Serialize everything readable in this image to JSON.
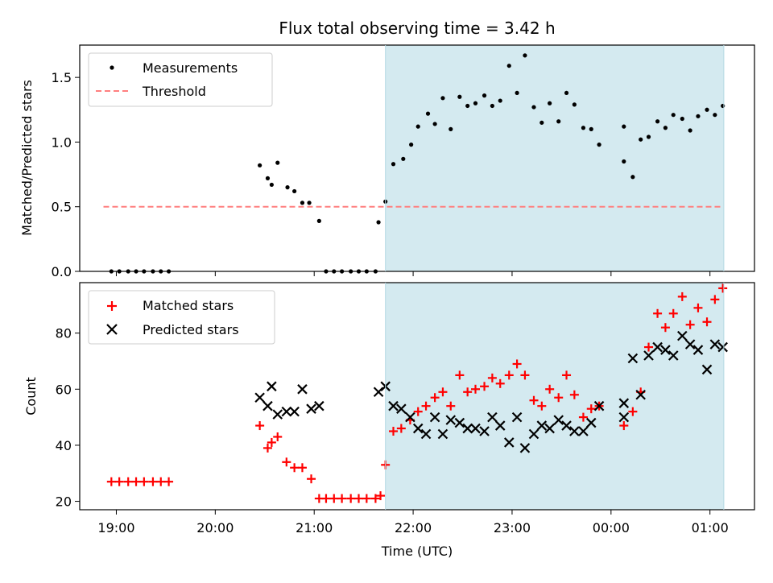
{
  "chart_data": {
    "type": "scatter",
    "title": "Flux total observing time = 3.42 h",
    "xlabel": "Time (UTC)",
    "x_tick_labels": [
      "19:00",
      "20:00",
      "21:00",
      "22:00",
      "23:00",
      "00:00",
      "01:00"
    ],
    "x_tick_hours": [
      19,
      20,
      21,
      22,
      23,
      24,
      25
    ],
    "xlim_hours": [
      18.63,
      25.45
    ],
    "shaded_region_hours": [
      21.72,
      25.14
    ],
    "shade_color": "#d4eaf0",
    "panels": [
      {
        "ylabel": "Matched/Predicted stars",
        "ylim": [
          0,
          1.75
        ],
        "y_ticks": [
          0.0,
          0.5,
          1.0,
          1.5
        ],
        "y_tick_labels": [
          "0.0",
          "0.5",
          "1.0",
          "1.5"
        ],
        "legend": [
          "Measurements",
          "Threshold"
        ],
        "threshold": {
          "name": "Threshold",
          "value": 0.5,
          "x_range_hours": [
            18.87,
            25.12
          ],
          "color": "#ff7f7f",
          "style": "dashed"
        },
        "series": [
          {
            "name": "Measurements",
            "marker": "dot",
            "color": "#000000",
            "points": [
              [
                18.95,
                0
              ],
              [
                19.03,
                0
              ],
              [
                19.12,
                0
              ],
              [
                19.2,
                0
              ],
              [
                19.28,
                0
              ],
              [
                19.37,
                0
              ],
              [
                19.45,
                0
              ],
              [
                19.53,
                0
              ],
              [
                20.45,
                0.82
              ],
              [
                20.53,
                0.72
              ],
              [
                20.57,
                0.67
              ],
              [
                20.63,
                0.84
              ],
              [
                20.73,
                0.65
              ],
              [
                20.8,
                0.62
              ],
              [
                20.88,
                0.53
              ],
              [
                20.95,
                0.53
              ],
              [
                21.05,
                0.39
              ],
              [
                21.12,
                0
              ],
              [
                21.2,
                0
              ],
              [
                21.28,
                0
              ],
              [
                21.37,
                0
              ],
              [
                21.45,
                0
              ],
              [
                21.53,
                0
              ],
              [
                21.62,
                0
              ],
              [
                21.65,
                0.38
              ],
              [
                21.72,
                0.54
              ],
              [
                21.8,
                0.83
              ],
              [
                21.9,
                0.87
              ],
              [
                21.98,
                0.98
              ],
              [
                22.05,
                1.12
              ],
              [
                22.15,
                1.22
              ],
              [
                22.22,
                1.14
              ],
              [
                22.3,
                1.34
              ],
              [
                22.38,
                1.1
              ],
              [
                22.47,
                1.35
              ],
              [
                22.55,
                1.28
              ],
              [
                22.63,
                1.3
              ],
              [
                22.72,
                1.36
              ],
              [
                22.8,
                1.28
              ],
              [
                22.88,
                1.32
              ],
              [
                22.97,
                1.59
              ],
              [
                23.05,
                1.38
              ],
              [
                23.13,
                1.67
              ],
              [
                23.22,
                1.27
              ],
              [
                23.3,
                1.15
              ],
              [
                23.38,
                1.3
              ],
              [
                23.47,
                1.16
              ],
              [
                23.55,
                1.38
              ],
              [
                23.63,
                1.29
              ],
              [
                23.72,
                1.11
              ],
              [
                23.8,
                1.1
              ],
              [
                23.88,
                0.98
              ],
              [
                24.13,
                1.12
              ],
              [
                24.13,
                0.85
              ],
              [
                24.22,
                0.73
              ],
              [
                24.3,
                1.02
              ],
              [
                24.38,
                1.04
              ],
              [
                24.47,
                1.16
              ],
              [
                24.55,
                1.11
              ],
              [
                24.63,
                1.21
              ],
              [
                24.72,
                1.18
              ],
              [
                24.8,
                1.09
              ],
              [
                24.88,
                1.2
              ],
              [
                24.97,
                1.25
              ],
              [
                25.05,
                1.21
              ],
              [
                25.13,
                1.28
              ]
            ]
          }
        ]
      },
      {
        "ylabel": "Count",
        "ylim": [
          17,
          98
        ],
        "y_ticks": [
          20,
          40,
          60,
          80
        ],
        "y_tick_labels": [
          "20",
          "40",
          "60",
          "80"
        ],
        "legend": [
          "Matched stars",
          "Predicted stars"
        ],
        "series": [
          {
            "name": "Matched stars",
            "marker": "plus",
            "color": "#ff0000",
            "points": [
              [
                18.95,
                27
              ],
              [
                19.03,
                27
              ],
              [
                19.12,
                27
              ],
              [
                19.2,
                27
              ],
              [
                19.28,
                27
              ],
              [
                19.37,
                27
              ],
              [
                19.45,
                27
              ],
              [
                19.53,
                27
              ],
              [
                20.45,
                47
              ],
              [
                20.53,
                39
              ],
              [
                20.57,
                41
              ],
              [
                20.63,
                43
              ],
              [
                20.72,
                34
              ],
              [
                20.8,
                32
              ],
              [
                20.88,
                32
              ],
              [
                20.97,
                28
              ],
              [
                21.05,
                21
              ],
              [
                21.12,
                21
              ],
              [
                21.2,
                21
              ],
              [
                21.28,
                21
              ],
              [
                21.37,
                21
              ],
              [
                21.45,
                21
              ],
              [
                21.53,
                21
              ],
              [
                21.62,
                21
              ],
              [
                21.67,
                22
              ],
              [
                21.72,
                33
              ],
              [
                21.8,
                45
              ],
              [
                21.88,
                46
              ],
              [
                21.97,
                49
              ],
              [
                22.05,
                52
              ],
              [
                22.13,
                54
              ],
              [
                22.22,
                57
              ],
              [
                22.3,
                59
              ],
              [
                22.38,
                54
              ],
              [
                22.47,
                65
              ],
              [
                22.55,
                59
              ],
              [
                22.63,
                60
              ],
              [
                22.72,
                61
              ],
              [
                22.8,
                64
              ],
              [
                22.88,
                62
              ],
              [
                22.97,
                65
              ],
              [
                23.05,
                69
              ],
              [
                23.13,
                65
              ],
              [
                23.22,
                56
              ],
              [
                23.3,
                54
              ],
              [
                23.38,
                60
              ],
              [
                23.47,
                57
              ],
              [
                23.55,
                65
              ],
              [
                23.63,
                58
              ],
              [
                23.72,
                50
              ],
              [
                23.8,
                53
              ],
              [
                23.88,
                54
              ],
              [
                24.13,
                47
              ],
              [
                24.22,
                52
              ],
              [
                24.3,
                59
              ],
              [
                24.38,
                75
              ],
              [
                24.47,
                87
              ],
              [
                24.55,
                82
              ],
              [
                24.63,
                87
              ],
              [
                24.72,
                93
              ],
              [
                24.8,
                83
              ],
              [
                24.88,
                89
              ],
              [
                24.97,
                84
              ],
              [
                25.05,
                92
              ],
              [
                25.13,
                96
              ]
            ]
          },
          {
            "name": "Predicted stars",
            "marker": "x",
            "color": "#000000",
            "points": [
              [
                20.45,
                57
              ],
              [
                20.53,
                54
              ],
              [
                20.57,
                61
              ],
              [
                20.63,
                51
              ],
              [
                20.72,
                52
              ],
              [
                20.8,
                52
              ],
              [
                20.88,
                60
              ],
              [
                20.97,
                53
              ],
              [
                21.05,
                54
              ],
              [
                21.65,
                59
              ],
              [
                21.72,
                61
              ],
              [
                21.8,
                54
              ],
              [
                21.88,
                53
              ],
              [
                21.97,
                50
              ],
              [
                22.05,
                46
              ],
              [
                22.13,
                44
              ],
              [
                22.22,
                50
              ],
              [
                22.3,
                44
              ],
              [
                22.38,
                49
              ],
              [
                22.47,
                48
              ],
              [
                22.55,
                46
              ],
              [
                22.63,
                46
              ],
              [
                22.72,
                45
              ],
              [
                22.8,
                50
              ],
              [
                22.88,
                47
              ],
              [
                22.97,
                41
              ],
              [
                23.05,
                50
              ],
              [
                23.13,
                39
              ],
              [
                23.22,
                44
              ],
              [
                23.3,
                47
              ],
              [
                23.38,
                46
              ],
              [
                23.47,
                49
              ],
              [
                23.55,
                47
              ],
              [
                23.63,
                45
              ],
              [
                23.72,
                45
              ],
              [
                23.8,
                48
              ],
              [
                23.88,
                54
              ],
              [
                24.13,
                50
              ],
              [
                24.13,
                55
              ],
              [
                24.22,
                71
              ],
              [
                24.3,
                58
              ],
              [
                24.38,
                72
              ],
              [
                24.47,
                75
              ],
              [
                24.55,
                74
              ],
              [
                24.63,
                72
              ],
              [
                24.72,
                79
              ],
              [
                24.8,
                76
              ],
              [
                24.88,
                74
              ],
              [
                24.97,
                67
              ],
              [
                25.05,
                76
              ],
              [
                25.13,
                75
              ]
            ]
          }
        ]
      }
    ]
  }
}
